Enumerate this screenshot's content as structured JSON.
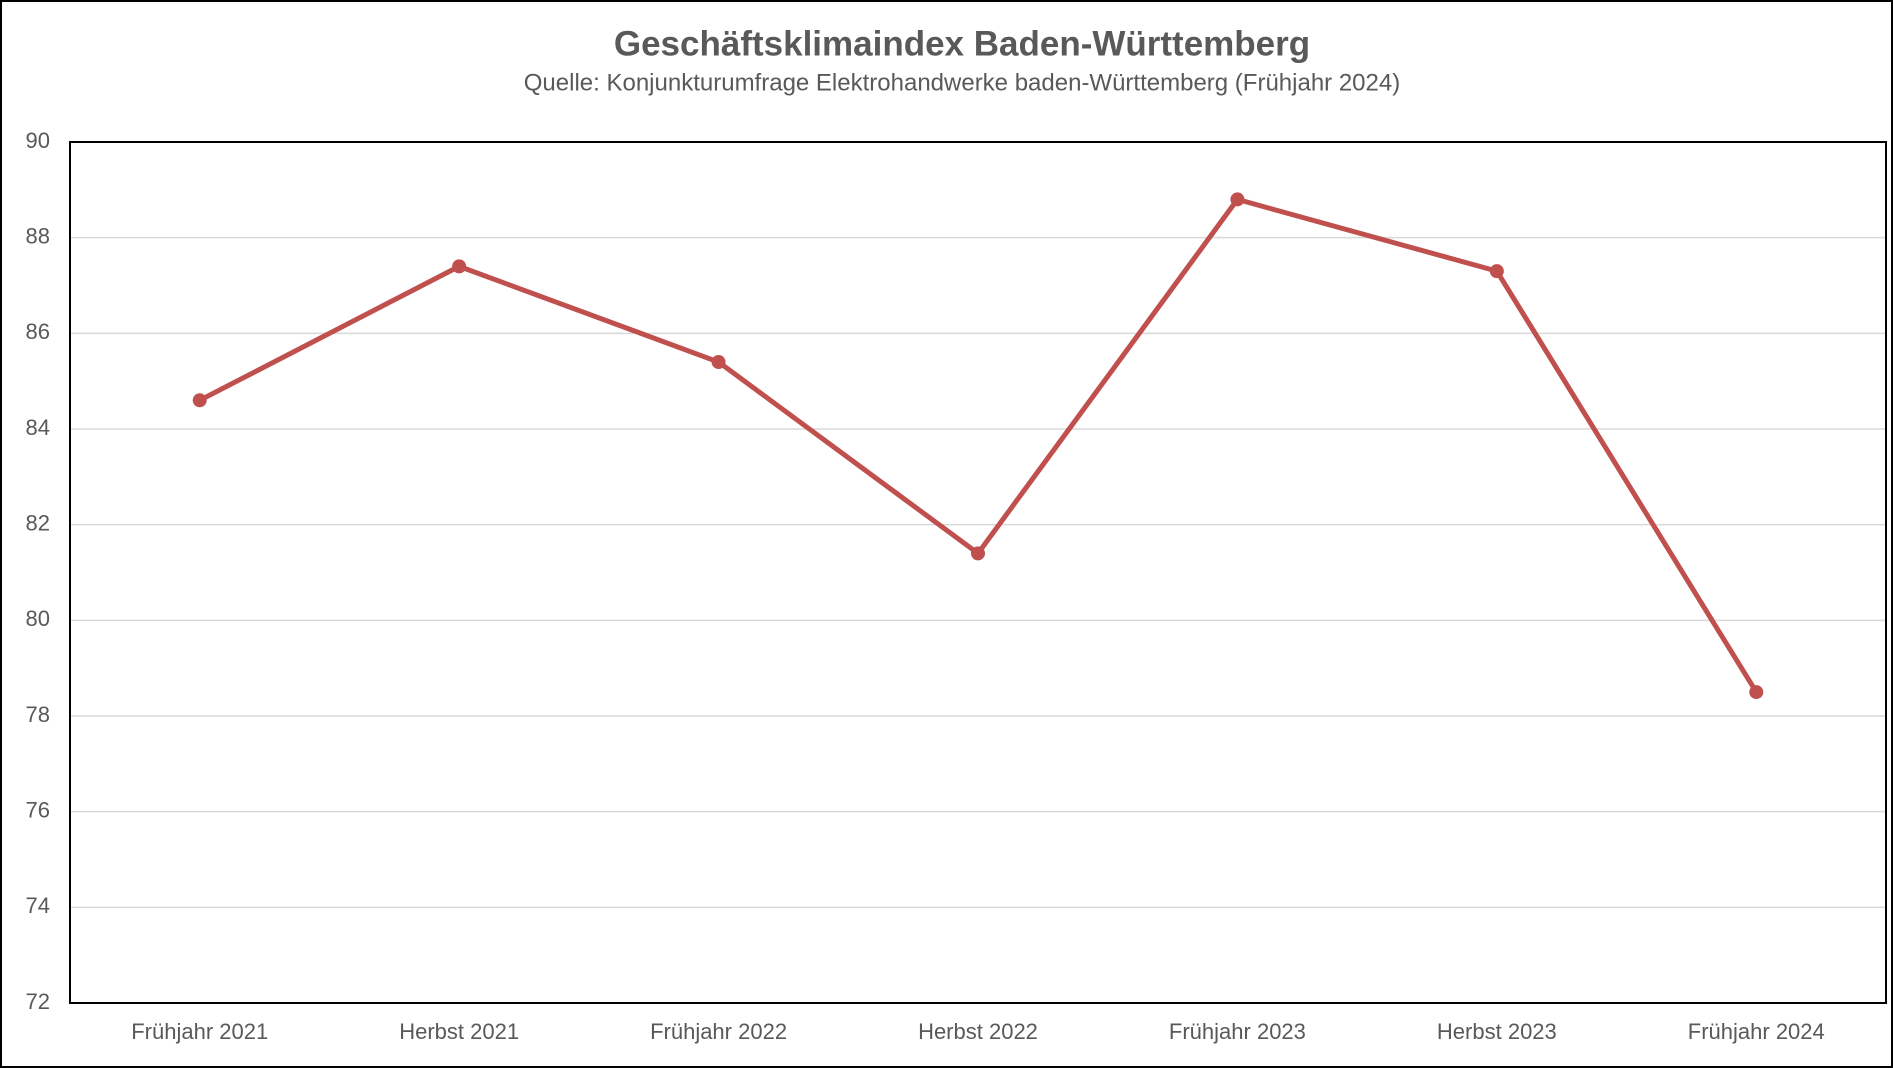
{
  "chart_data": {
    "type": "line",
    "title": "Geschäftsklimaindex Baden-Württemberg",
    "subtitle": "Quelle: Konjunkturumfrage Elektrohandwerke baden-Württemberg (Frühjahr 2024)",
    "categories": [
      "Frühjahr 2021",
      "Herbst 2021",
      "Frühjahr 2022",
      "Herbst 2022",
      "Frühjahr 2023",
      "Herbst 2023",
      "Frühjahr 2024"
    ],
    "series": [
      {
        "name": "Geschäftsklimaindex",
        "color": "#c0504d",
        "values": [
          84.6,
          87.4,
          85.4,
          81.4,
          88.8,
          87.3,
          78.5
        ]
      }
    ],
    "ylim": [
      72,
      90
    ],
    "yticks": [
      72,
      74,
      76,
      78,
      80,
      82,
      84,
      86,
      88,
      90
    ],
    "grid": true
  }
}
